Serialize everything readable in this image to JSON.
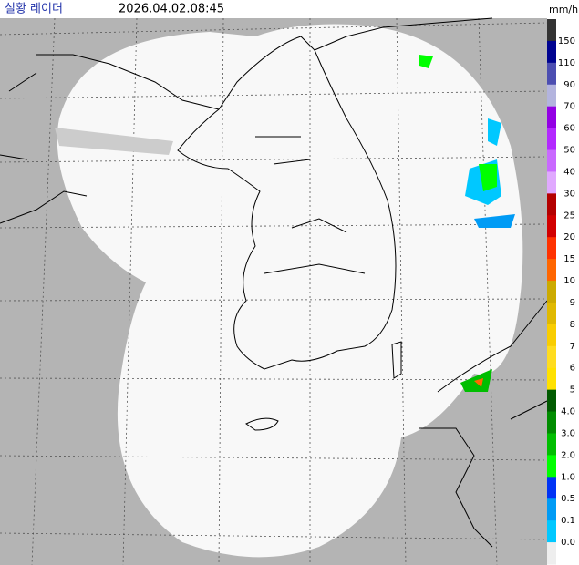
{
  "header": {
    "title": "실황 레이더",
    "datetime": "2026.04.02.08:45",
    "unit": "mm/h"
  },
  "legend": {
    "labels": [
      "150",
      "110",
      "90",
      "70",
      "60",
      "50",
      "40",
      "30",
      "25",
      "20",
      "15",
      "10",
      "9",
      "8",
      "7",
      "6",
      "5",
      "4.0",
      "3.0",
      "2.0",
      "1.0",
      "0.5",
      "0.1",
      "0.0"
    ],
    "colors": [
      "#333333",
      "#000390",
      "#4c4eb1",
      "#b3b4de",
      "#9300e4",
      "#b329ff",
      "#c969ff",
      "#e0a9ff",
      "#b40000",
      "#d20000",
      "#ff3200",
      "#ff6600",
      "#ccaa00",
      "#e0b900",
      "#f9cd00",
      "#ffdc1f",
      "#ffe100",
      "#005a00",
      "#008c00",
      "#00be00",
      "#00ff00",
      "#0033f5",
      "#009bf5",
      "#00c8ff",
      "#eeeeee"
    ]
  }
}
